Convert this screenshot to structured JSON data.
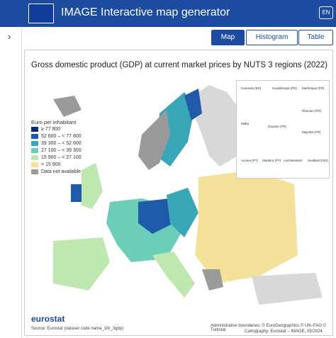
{
  "header": {
    "title": "IMAGE Interactive map generator",
    "language": "EN"
  },
  "tabs": [
    "Map",
    "Histogram",
    "Table"
  ],
  "map": {
    "title": "Gross domestic product (GDP) at current market prices by NUTS 3 regions (2022)",
    "legend": {
      "title": "Euro per inhabitant",
      "items": [
        {
          "label": "≥ 77 800",
          "color": "#0c2c6e"
        },
        {
          "label": "52 600 – < 77 800",
          "color": "#1f5ba8"
        },
        {
          "label": "39 300 – < 52 600",
          "color": "#3aa7b8"
        },
        {
          "label": "27 100 – < 39 300",
          "color": "#6ccdb8"
        },
        {
          "label": "15 900 – < 27 100",
          "color": "#bfe7b0"
        },
        {
          "label": "< 15 900",
          "color": "#f5e29a"
        },
        {
          "label": "Data not available",
          "color": "#9a9a9a"
        }
      ]
    },
    "insets": [
      "Canarias (ES)",
      "Guadeloupe (FR)",
      "Martinique (FR)",
      "Réunion (FR)",
      "Guyane (FR)",
      "Malta",
      "Mayotte (FR)",
      "Açores (PT)",
      "Madeira (PT)",
      "Liechtenstein",
      "Svalbard (NO)"
    ],
    "brand": "eurostat",
    "source": "Source: Eurostat (dataset code nama_10r_3gdp)",
    "credits": [
      "Administrative boundaries: © EuroGeographics © UN–FAO © Turkstat",
      "Cartography: Eurostat – IMAGE, 05/2024"
    ]
  }
}
